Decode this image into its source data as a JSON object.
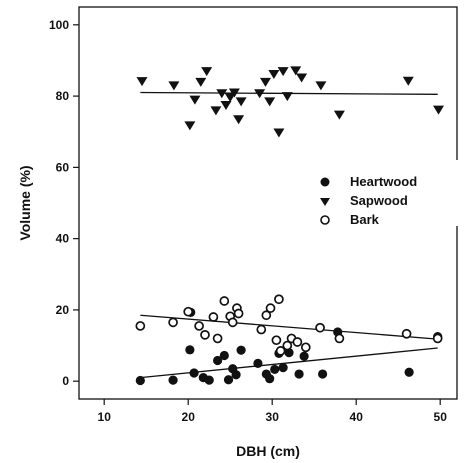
{
  "chart_data": {
    "type": "scatter",
    "title": "",
    "xlabel": "DBH (cm)",
    "ylabel": "Volume (%)",
    "xlim": [
      7,
      52
    ],
    "ylim": [
      -5,
      105
    ],
    "xticks": [
      10,
      20,
      30,
      40,
      50
    ],
    "yticks": [
      0,
      20,
      40,
      60,
      80,
      100
    ],
    "grid": false,
    "legend_position": "right-middle",
    "series": [
      {
        "name": "Heartwood",
        "marker": "filled-circle",
        "color": "#111111",
        "points": [
          [
            14.3,
            0.2
          ],
          [
            18.2,
            0.3
          ],
          [
            20.2,
            8.8
          ],
          [
            20.7,
            2.3
          ],
          [
            20.3,
            19.3
          ],
          [
            21.8,
            1.0
          ],
          [
            22.5,
            0.3
          ],
          [
            23.5,
            5.8
          ],
          [
            24.3,
            7.2
          ],
          [
            24.8,
            0.4
          ],
          [
            25.3,
            3.5
          ],
          [
            25.7,
            1.8
          ],
          [
            26.3,
            8.7
          ],
          [
            28.3,
            5.0
          ],
          [
            29.3,
            2.0
          ],
          [
            29.7,
            0.7
          ],
          [
            30.3,
            3.3
          ],
          [
            30.8,
            7.8
          ],
          [
            31.3,
            3.8
          ],
          [
            32.0,
            8.0
          ],
          [
            33.2,
            2.0
          ],
          [
            33.8,
            7.0
          ],
          [
            36.0,
            2.0
          ],
          [
            37.8,
            13.8
          ],
          [
            46.3,
            2.5
          ],
          [
            49.7,
            12.5
          ]
        ],
        "fit": [
          [
            14.3,
            1.0
          ],
          [
            49.7,
            9.3
          ]
        ]
      },
      {
        "name": "Sapwood",
        "marker": "filled-triangle-down",
        "color": "#111111",
        "points": [
          [
            14.5,
            84.2
          ],
          [
            18.3,
            83.0
          ],
          [
            20.2,
            71.8
          ],
          [
            20.8,
            79.0
          ],
          [
            21.5,
            84.0
          ],
          [
            22.2,
            87.0
          ],
          [
            23.3,
            76.0
          ],
          [
            24.0,
            80.8
          ],
          [
            24.5,
            77.5
          ],
          [
            25.0,
            79.7
          ],
          [
            25.5,
            81.0
          ],
          [
            26.0,
            73.5
          ],
          [
            26.3,
            78.5
          ],
          [
            28.5,
            80.8
          ],
          [
            29.2,
            84.0
          ],
          [
            29.7,
            78.5
          ],
          [
            30.2,
            86.2
          ],
          [
            30.8,
            69.8
          ],
          [
            31.3,
            87.0
          ],
          [
            31.8,
            80.0
          ],
          [
            32.8,
            87.2
          ],
          [
            33.5,
            85.2
          ],
          [
            35.8,
            83.0
          ],
          [
            38.0,
            74.8
          ],
          [
            46.2,
            84.3
          ],
          [
            49.8,
            76.2
          ]
        ],
        "fit": [
          [
            14.3,
            81.0
          ],
          [
            49.7,
            80.5
          ]
        ]
      },
      {
        "name": "Bark",
        "marker": "open-circle",
        "color": "#111111",
        "points": [
          [
            14.3,
            15.5
          ],
          [
            18.2,
            16.5
          ],
          [
            20.0,
            19.5
          ],
          [
            21.3,
            15.5
          ],
          [
            22.0,
            13.0
          ],
          [
            23.0,
            18.0
          ],
          [
            23.5,
            12.0
          ],
          [
            24.3,
            22.5
          ],
          [
            25.0,
            18.2
          ],
          [
            25.3,
            16.5
          ],
          [
            25.8,
            20.5
          ],
          [
            26.0,
            19.0
          ],
          [
            28.7,
            14.5
          ],
          [
            29.3,
            18.5
          ],
          [
            29.8,
            20.5
          ],
          [
            30.5,
            11.5
          ],
          [
            30.8,
            23.0
          ],
          [
            31.0,
            8.5
          ],
          [
            31.8,
            10.0
          ],
          [
            32.3,
            12.0
          ],
          [
            33.0,
            11.0
          ],
          [
            34.0,
            9.5
          ],
          [
            35.7,
            15.0
          ],
          [
            38.0,
            12.0
          ],
          [
            46.0,
            13.3
          ],
          [
            49.7,
            12.0
          ]
        ],
        "fit": [
          [
            14.3,
            18.5
          ],
          [
            49.7,
            11.8
          ]
        ]
      }
    ]
  }
}
